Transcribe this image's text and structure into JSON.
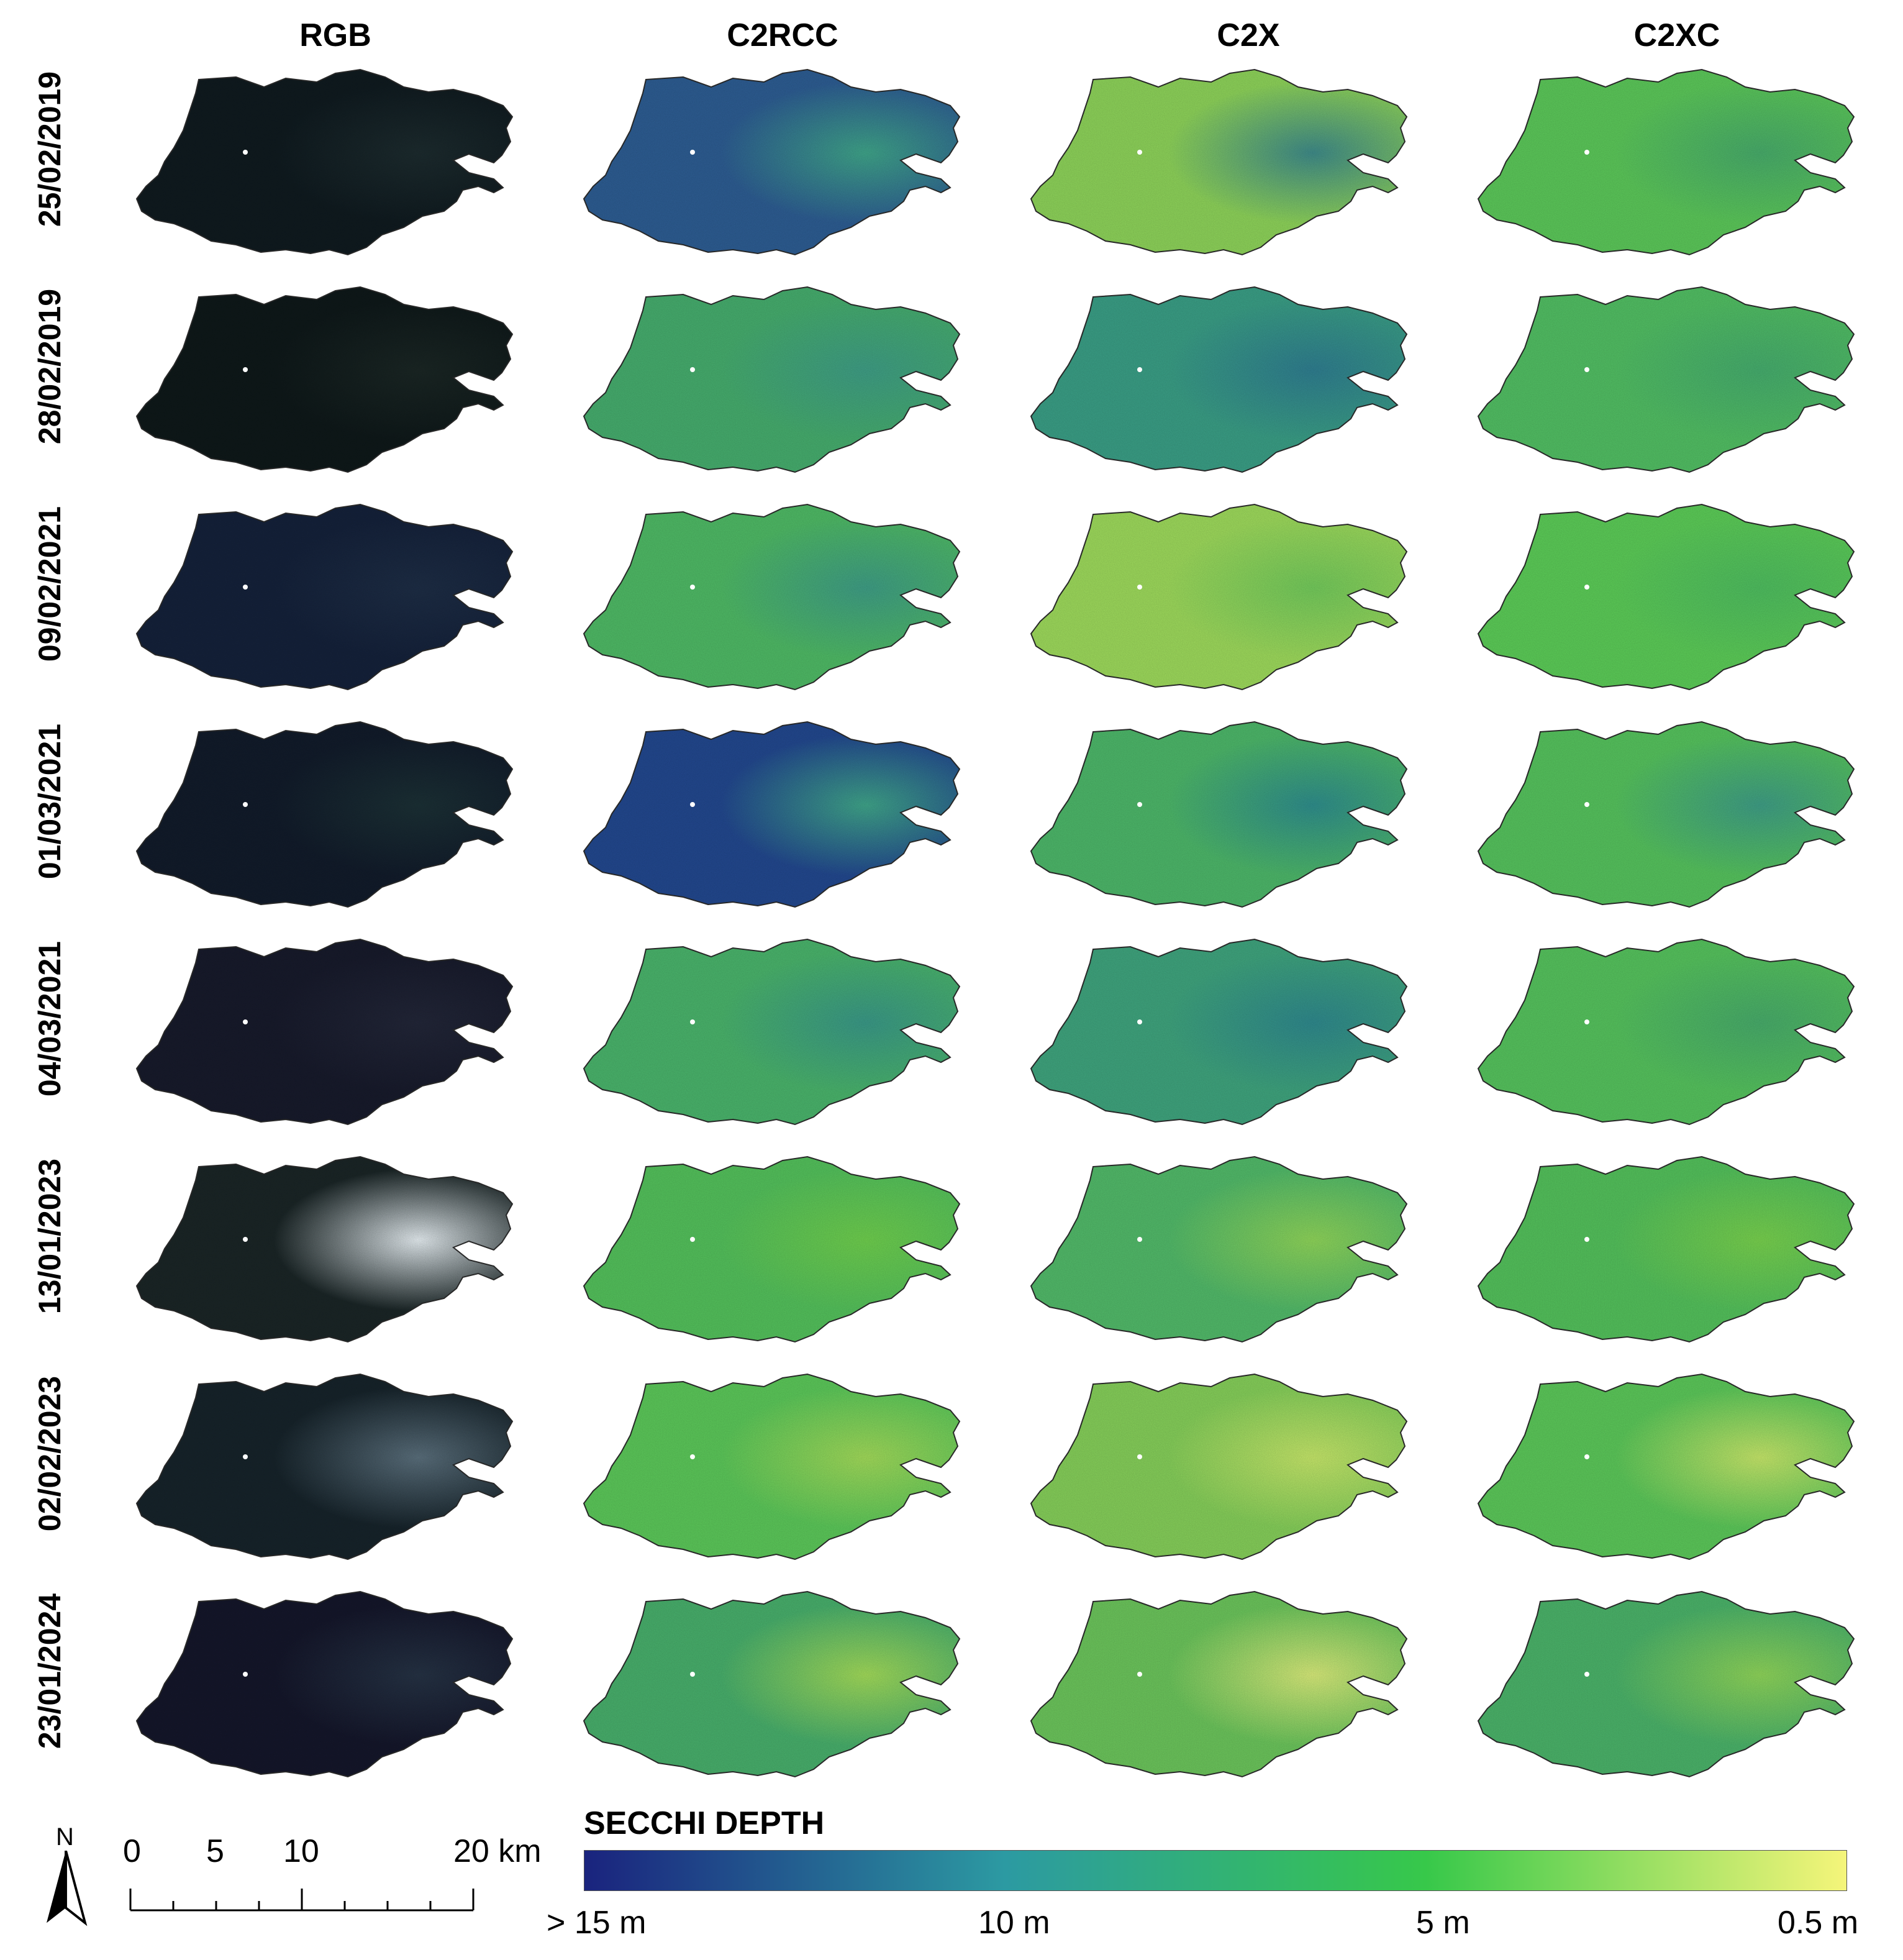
{
  "columns": [
    "RGB",
    "C2RCC",
    "C2X",
    "C2XC"
  ],
  "rows": [
    "25/02/2019",
    "28/02/2019",
    "09/02/2021",
    "01/03/2021",
    "04/03/2021",
    "13/01/2023",
    "02/02/2023",
    "23/01/2024"
  ],
  "panels": [
    [
      {
        "base": "#0f1a1f",
        "accent": "#1c2b2e"
      },
      {
        "base": "#2d5d93",
        "accent": "#3fa58a"
      },
      {
        "base": "#8ed45a",
        "accent": "#3f8c8a"
      },
      {
        "base": "#5cc95a",
        "accent": "#48ad6b"
      }
    ],
    [
      {
        "base": "#0e1819",
        "accent": "#1a2624"
      },
      {
        "base": "#46ae6e",
        "accent": "#3f9f86"
      },
      {
        "base": "#3a9f86",
        "accent": "#2f7f91"
      },
      {
        "base": "#52c064",
        "accent": "#46ae6e"
      }
    ],
    [
      {
        "base": "#14213a",
        "accent": "#1d2d45"
      },
      {
        "base": "#4fbb66",
        "accent": "#3f9f86"
      },
      {
        "base": "#9edb5c",
        "accent": "#74cc5c"
      },
      {
        "base": "#5ccd58",
        "accent": "#4fbf60"
      }
    ],
    [
      {
        "base": "#111b2a",
        "accent": "#1b3035"
      },
      {
        "base": "#22488f",
        "accent": "#3fa58a"
      },
      {
        "base": "#4db86a",
        "accent": "#2f8f8d"
      },
      {
        "base": "#56c45e",
        "accent": "#3f9f86"
      }
    ],
    [
      {
        "base": "#171a2b",
        "accent": "#222638"
      },
      {
        "base": "#4ab56c",
        "accent": "#3a9a88"
      },
      {
        "base": "#3fa57e",
        "accent": "#2f8a8e"
      },
      {
        "base": "#56c45e",
        "accent": "#48ad6b"
      }
    ],
    [
      {
        "base": "#1a2526",
        "accent": "#e6eef2"
      },
      {
        "base": "#54c25c",
        "accent": "#6fd04e"
      },
      {
        "base": "#52bb6a",
        "accent": "#8fd65a"
      },
      {
        "base": "#54c25c",
        "accent": "#78d24e"
      }
    ],
    [
      {
        "base": "#16232a",
        "accent": "#5a6f7c"
      },
      {
        "base": "#5cc95a",
        "accent": "#a2dc5a"
      },
      {
        "base": "#86d05a",
        "accent": "#c6e86a"
      },
      {
        "base": "#5cc95a",
        "accent": "#c6e86a"
      }
    ],
    [
      {
        "base": "#14162a",
        "accent": "#253244"
      },
      {
        "base": "#48b06c",
        "accent": "#a2dc5a"
      },
      {
        "base": "#6cc65c",
        "accent": "#d8ec7a"
      },
      {
        "base": "#4bb46a",
        "accent": "#8fd65a"
      }
    ]
  ],
  "legend": {
    "title": "SECCHI DEPTH",
    "ticks": [
      "> 15 m",
      "10 m",
      "5 m",
      "0.5 m"
    ],
    "colors": [
      "#1a237e",
      "#2c9aa2",
      "#37c84a",
      "#f5f57a"
    ]
  },
  "scale_bar": {
    "labels": [
      "0",
      "5",
      "10",
      "20 km"
    ]
  },
  "north_arrow": {
    "label": "N",
    "icon": "north-arrow-icon"
  }
}
